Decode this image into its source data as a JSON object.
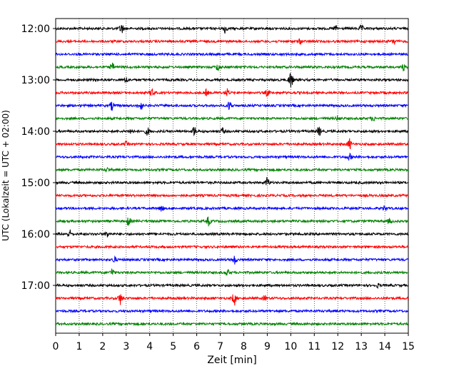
{
  "chart_data": {
    "type": "line",
    "title": "",
    "xlabel": "Zeit  [min]",
    "ylabel": "UTC (Lokalzeit = UTC + 02:00)",
    "xlim": [
      0,
      15
    ],
    "x_ticks": [
      "0",
      "1",
      "2",
      "3",
      "4",
      "5",
      "6",
      "7",
      "8",
      "9",
      "10",
      "11",
      "12",
      "13",
      "14",
      "15"
    ],
    "y_ticks": [
      "12:00",
      "13:00",
      "14:00",
      "15:00",
      "16:00",
      "17:00"
    ],
    "grid": "vertical dotted lines at each minute",
    "color_cycle": [
      "#000000",
      "#ff0000",
      "#0000ff",
      "#008000"
    ],
    "traces": [
      {
        "start": "12:00",
        "events": [
          [
            2.8,
            7
          ],
          [
            7.2,
            6
          ],
          [
            11.9,
            4
          ],
          [
            13.0,
            4
          ]
        ]
      },
      {
        "start": "12:15",
        "events": [
          [
            10.4,
            3
          ],
          [
            14.4,
            4
          ]
        ]
      },
      {
        "start": "12:30",
        "events": []
      },
      {
        "start": "12:45",
        "events": [
          [
            2.4,
            5
          ],
          [
            6.9,
            5
          ],
          [
            14.8,
            4
          ]
        ]
      },
      {
        "start": "13:00",
        "events": [
          [
            3.0,
            4
          ],
          [
            10.0,
            12
          ]
        ]
      },
      {
        "start": "13:15",
        "events": [
          [
            4.1,
            6
          ],
          [
            6.4,
            4
          ],
          [
            7.3,
            5
          ],
          [
            9.0,
            4
          ]
        ]
      },
      {
        "start": "13:30",
        "events": [
          [
            2.4,
            6
          ],
          [
            3.6,
            9
          ],
          [
            7.4,
            7
          ]
        ]
      },
      {
        "start": "13:45",
        "events": [
          [
            12.0,
            3
          ],
          [
            13.5,
            3
          ]
        ]
      },
      {
        "start": "14:00",
        "events": [
          [
            3.2,
            4
          ],
          [
            3.9,
            5
          ],
          [
            5.9,
            6
          ],
          [
            7.1,
            4
          ],
          [
            11.2,
            6
          ]
        ]
      },
      {
        "start": "14:15",
        "events": [
          [
            3.0,
            3
          ],
          [
            12.5,
            7
          ]
        ]
      },
      {
        "start": "14:30",
        "events": [
          [
            12.5,
            4
          ]
        ]
      },
      {
        "start": "14:45",
        "events": [
          [
            2.2,
            2
          ]
        ]
      },
      {
        "start": "15:00",
        "events": [
          [
            9.0,
            7
          ]
        ]
      },
      {
        "start": "15:15",
        "events": []
      },
      {
        "start": "15:30",
        "events": [
          [
            4.5,
            4
          ],
          [
            14.0,
            3
          ]
        ]
      },
      {
        "start": "15:45",
        "events": [
          [
            3.1,
            6
          ],
          [
            6.5,
            6
          ],
          [
            14.2,
            3
          ]
        ]
      },
      {
        "start": "16:00",
        "events": [
          [
            0.6,
            5
          ],
          [
            2.2,
            4
          ]
        ]
      },
      {
        "start": "16:15",
        "events": []
      },
      {
        "start": "16:30",
        "events": [
          [
            2.5,
            4
          ],
          [
            7.6,
            6
          ]
        ]
      },
      {
        "start": "16:45",
        "events": [
          [
            2.4,
            5
          ],
          [
            7.3,
            4
          ]
        ]
      },
      {
        "start": "17:00",
        "events": [
          [
            13.7,
            2
          ]
        ]
      },
      {
        "start": "17:15",
        "events": [
          [
            2.75,
            8
          ],
          [
            7.6,
            9
          ],
          [
            8.9,
            3
          ]
        ]
      },
      {
        "start": "17:30",
        "events": []
      },
      {
        "start": "17:45",
        "events": []
      }
    ]
  }
}
